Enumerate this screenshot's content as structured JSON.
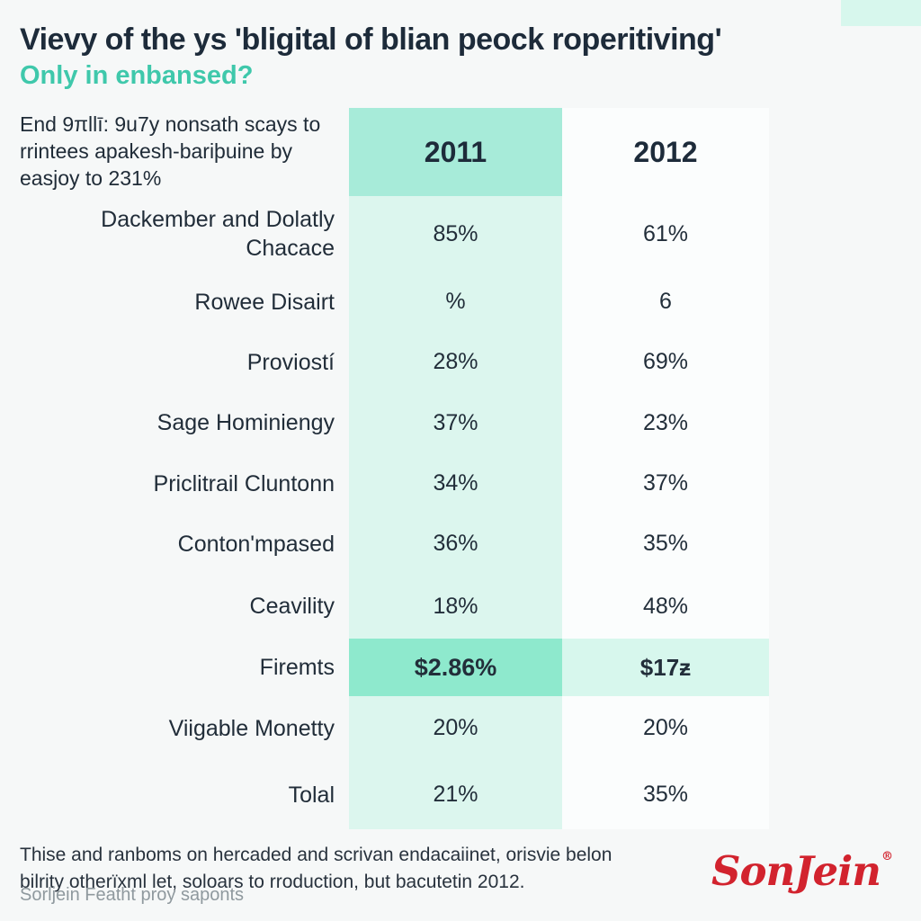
{
  "colors": {
    "page_bg": "#f6f8f8",
    "navy": "#1d2b3a",
    "accent_teal": "#3fc8ab",
    "mint_mid": "#a7ebd9",
    "mint_light": "#dcf6ee",
    "mint_strong": "#8ee9cd",
    "mint_soft": "#d7f7ed",
    "col_2012_bg": "#fbfdfd",
    "brand_red": "#d2232e"
  },
  "chart_data": {
    "type": "table",
    "title": "Vievy of the ys 'bligital of blian peock roperitiving'",
    "subtitle": "Only in enbansed?",
    "note": "End 9πllī: 9u7y nonsath scays to rrintees apakesh-bariþuine by easjoy to 231%",
    "columns": [
      "2011",
      "2012"
    ],
    "rows": [
      {
        "label": "Dackember and Dolatly Chacace",
        "v2011": "85%",
        "v2012": "61%",
        "highlight": false
      },
      {
        "label": "Rowee Disairt",
        "v2011": "%",
        "v2012": "6",
        "highlight": false
      },
      {
        "label": "Proviostí",
        "v2011": "28%",
        "v2012": "69%",
        "highlight": false
      },
      {
        "label": "Sage Hominiengy",
        "v2011": "37%",
        "v2012": "23%",
        "highlight": false
      },
      {
        "label": "Priclitrail Cluntonn",
        "v2011": "34%",
        "v2012": "37%",
        "highlight": false
      },
      {
        "label": "Conton'mpased",
        "v2011": "36%",
        "v2012": "35%",
        "highlight": false
      },
      {
        "label": "Ceavility",
        "v2011": "18%",
        "v2012": "48%",
        "highlight": false
      },
      {
        "label": "Firemts",
        "v2011": "$2.86%",
        "v2012": "$17ƶ",
        "highlight": true
      },
      {
        "label": "Viigable Monetty",
        "v2011": "20%",
        "v2012": "20%",
        "highlight": false
      },
      {
        "label": "Tolal",
        "v2011": "21%",
        "v2012": "35%",
        "highlight": false
      }
    ]
  },
  "footer": {
    "line1": "Thise and ranboms on hercaded and scrivan endacaiinet, orisvie belon bilrity otherïxml let, soloars to rroduction, but bacutetin 2012.",
    "line2": "Sorljein Featht proy saponts"
  },
  "brand": {
    "logo": "SonJein",
    "registered": "®"
  }
}
